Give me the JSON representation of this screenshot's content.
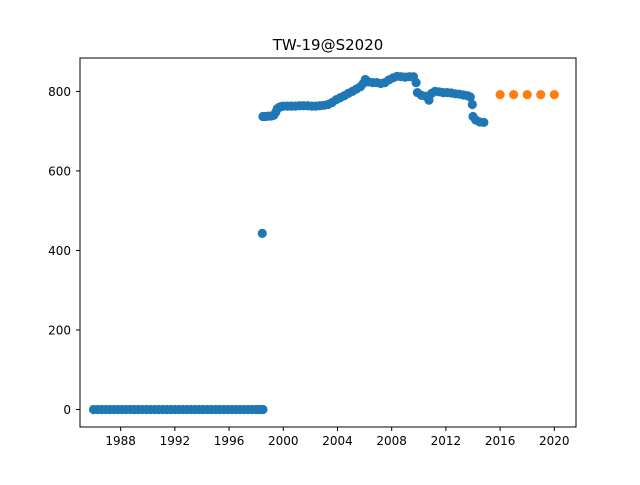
{
  "chart_data": {
    "type": "scatter",
    "title": "TW-19@S2020",
    "xlabel": "",
    "ylabel": "",
    "xlim": [
      1985.0,
      2021.6
    ],
    "ylim": [
      -44,
      884
    ],
    "x_ticks": [
      1988,
      1992,
      1996,
      2000,
      2004,
      2008,
      2012,
      2016,
      2020
    ],
    "x_tick_labels": [
      "1988",
      "1992",
      "1996",
      "2000",
      "2004",
      "2008",
      "2012",
      "2016",
      "2020"
    ],
    "y_ticks": [
      0,
      200,
      400,
      600,
      800
    ],
    "y_tick_labels": [
      "0",
      "200",
      "400",
      "600",
      "800"
    ],
    "grid": false,
    "legend": "none",
    "series": [
      {
        "color": "#1f77b4",
        "points": [
          [
            1986.0,
            0
          ],
          [
            1986.3,
            0
          ],
          [
            1986.6,
            0
          ],
          [
            1986.9,
            0
          ],
          [
            1987.2,
            0
          ],
          [
            1987.5,
            0
          ],
          [
            1987.8,
            0
          ],
          [
            1988.1,
            0
          ],
          [
            1988.4,
            0
          ],
          [
            1988.7,
            0
          ],
          [
            1989.0,
            0
          ],
          [
            1989.3,
            0
          ],
          [
            1989.6,
            0
          ],
          [
            1989.9,
            0
          ],
          [
            1990.2,
            0
          ],
          [
            1990.5,
            0
          ],
          [
            1990.8,
            0
          ],
          [
            1991.1,
            0
          ],
          [
            1991.4,
            0
          ],
          [
            1991.7,
            0
          ],
          [
            1992.0,
            0
          ],
          [
            1992.3,
            0
          ],
          [
            1992.6,
            0
          ],
          [
            1992.9,
            0
          ],
          [
            1993.2,
            0
          ],
          [
            1993.5,
            0
          ],
          [
            1993.8,
            0
          ],
          [
            1994.1,
            0
          ],
          [
            1994.4,
            0
          ],
          [
            1994.7,
            0
          ],
          [
            1995.0,
            0
          ],
          [
            1995.3,
            0
          ],
          [
            1995.6,
            0
          ],
          [
            1995.9,
            0
          ],
          [
            1996.2,
            0
          ],
          [
            1996.5,
            0
          ],
          [
            1996.8,
            0
          ],
          [
            1997.1,
            0
          ],
          [
            1997.4,
            0
          ],
          [
            1997.7,
            0
          ],
          [
            1998.0,
            0
          ],
          [
            1998.2,
            0
          ],
          [
            1998.4,
            0
          ],
          [
            1998.5,
            0
          ],
          [
            1998.45,
            443
          ],
          [
            1998.5,
            737
          ],
          [
            1998.7,
            737
          ],
          [
            1998.9,
            738
          ],
          [
            1999.1,
            738
          ],
          [
            1999.3,
            740
          ],
          [
            1999.45,
            748
          ],
          [
            1999.55,
            756
          ],
          [
            1999.7,
            760
          ],
          [
            1999.85,
            762
          ],
          [
            2000.0,
            763
          ],
          [
            2000.3,
            763
          ],
          [
            2000.6,
            763
          ],
          [
            2000.9,
            763
          ],
          [
            2001.2,
            764
          ],
          [
            2001.5,
            764
          ],
          [
            2001.8,
            764
          ],
          [
            2002.1,
            763
          ],
          [
            2002.4,
            763
          ],
          [
            2002.7,
            764
          ],
          [
            2003.0,
            765
          ],
          [
            2003.3,
            767
          ],
          [
            2003.6,
            772
          ],
          [
            2003.9,
            779
          ],
          [
            2004.2,
            784
          ],
          [
            2004.5,
            789
          ],
          [
            2004.8,
            795
          ],
          [
            2005.1,
            800
          ],
          [
            2005.4,
            806
          ],
          [
            2005.7,
            812
          ],
          [
            2005.9,
            820
          ],
          [
            2006.05,
            830
          ],
          [
            2006.3,
            824
          ],
          [
            2006.6,
            822
          ],
          [
            2006.9,
            822
          ],
          [
            2007.2,
            820
          ],
          [
            2007.5,
            822
          ],
          [
            2007.8,
            829
          ],
          [
            2008.1,
            834
          ],
          [
            2008.4,
            838
          ],
          [
            2008.7,
            837
          ],
          [
            2009.0,
            836
          ],
          [
            2009.3,
            837
          ],
          [
            2009.6,
            837
          ],
          [
            2009.8,
            822
          ],
          [
            2009.9,
            797
          ],
          [
            2010.2,
            790
          ],
          [
            2010.5,
            788
          ],
          [
            2010.75,
            778
          ],
          [
            2010.95,
            795
          ],
          [
            2011.2,
            800
          ],
          [
            2011.5,
            799
          ],
          [
            2011.8,
            797
          ],
          [
            2012.1,
            797
          ],
          [
            2012.4,
            796
          ],
          [
            2012.7,
            794
          ],
          [
            2013.0,
            793
          ],
          [
            2013.3,
            791
          ],
          [
            2013.6,
            789
          ],
          [
            2013.8,
            786
          ],
          [
            2013.95,
            767
          ],
          [
            2014.0,
            737
          ],
          [
            2014.2,
            728
          ],
          [
            2014.5,
            723
          ],
          [
            2014.8,
            722
          ]
        ]
      },
      {
        "color": "#ff7f0e",
        "points": [
          [
            2016,
            792
          ],
          [
            2017,
            792
          ],
          [
            2018,
            792
          ],
          [
            2019,
            792
          ],
          [
            2020,
            792
          ]
        ]
      }
    ]
  }
}
